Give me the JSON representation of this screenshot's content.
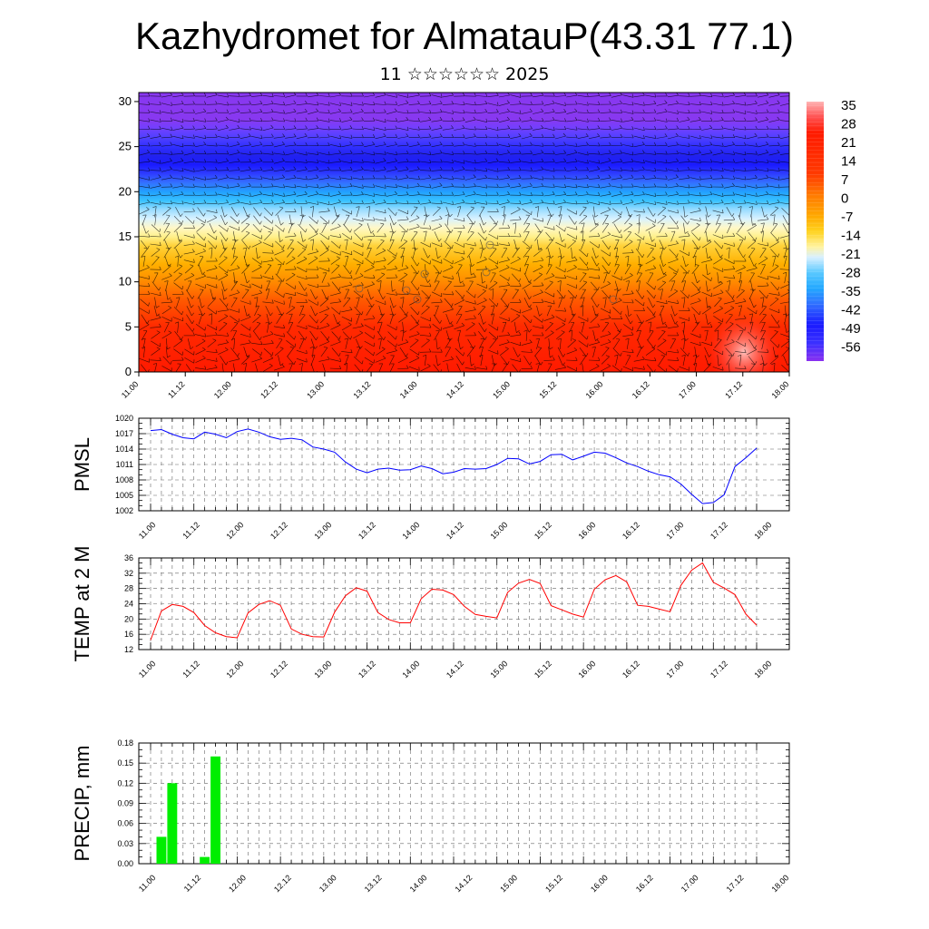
{
  "header": {
    "title": "Kazhydromet for AlmatauP(43.31 77.1)",
    "subtitle": "11 ☆☆☆☆☆☆ 2025"
  },
  "colors": {
    "pmsl_line": "#0000ff",
    "temp_line": "#ff0000",
    "precip_bar": "#00ee00",
    "grid": "#000000"
  },
  "chart_data": [
    {
      "type": "heatmap",
      "name": "upper-air-cross-section",
      "x_tick_labels": [
        "11.00",
        "11.12",
        "12.00",
        "12.12",
        "13.00",
        "13.12",
        "14.00",
        "14.12",
        "15.00",
        "15.12",
        "16.00",
        "16.12",
        "17.00",
        "17.12",
        "18.00"
      ],
      "y_ticks": [
        0,
        5,
        10,
        15,
        20,
        25,
        30
      ],
      "ylim": [
        0,
        31
      ],
      "colorbar_labels": [
        "35",
        "28",
        "21",
        "14",
        "7",
        "0",
        "-7",
        "-14",
        "-21",
        "-28",
        "-35",
        "-42",
        "-49",
        "-56"
      ],
      "profile_levels_y": [
        0,
        5,
        8,
        10,
        12,
        14,
        15,
        16,
        17,
        18,
        19,
        20,
        21,
        22,
        23,
        24,
        25,
        26,
        27,
        28,
        31
      ],
      "profile_colors": [
        "#ff1a00",
        "#ff2a00",
        "#ff5a00",
        "#ff8a00",
        "#ffb000",
        "#ffd23a",
        "#fff08a",
        "#fff8c8",
        "#d8f2ff",
        "#9adcff",
        "#38c2ff",
        "#22a0ff",
        "#3470ff",
        "#2e3cff",
        "#1a1aff",
        "#2222ee",
        "#3030ff",
        "#5040ff",
        "#7040ff",
        "#8838f0",
        "#8838f0"
      ],
      "overlay": "wind-barbs"
    },
    {
      "type": "line",
      "name": "PMSL",
      "ylabel": "PMSL",
      "ylim": [
        1002,
        1020
      ],
      "y_ticks": [
        1002,
        1005,
        1008,
        1011,
        1014,
        1017,
        1020
      ],
      "x_tick_labels": [
        "11.00",
        "11.12",
        "12.00",
        "12.12",
        "13.00",
        "13.12",
        "14.00",
        "14.12",
        "15.00",
        "15.12",
        "16.00",
        "16.12",
        "17.00",
        "17.12",
        "18.00"
      ],
      "values": [
        1017.6,
        1017.8,
        1016.9,
        1016.2,
        1016.0,
        1017.3,
        1016.9,
        1016.2,
        1017.4,
        1017.9,
        1017.3,
        1016.4,
        1015.9,
        1016.1,
        1015.8,
        1014.4,
        1014.0,
        1013.4,
        1011.5,
        1010.1,
        1009.4,
        1010.1,
        1010.3,
        1009.9,
        1010.0,
        1010.7,
        1010.2,
        1009.2,
        1009.5,
        1010.2,
        1010.1,
        1010.2,
        1011.0,
        1012.2,
        1012.1,
        1011.1,
        1011.6,
        1012.9,
        1013.0,
        1011.9,
        1012.6,
        1013.4,
        1013.2,
        1012.3,
        1011.3,
        1010.6,
        1009.7,
        1009.0,
        1008.6,
        1007.2,
        1005.2,
        1003.4,
        1003.6,
        1005.1,
        1010.6,
        1012.3,
        1014.2
      ]
    },
    {
      "type": "line",
      "name": "TEMP at 2 M",
      "ylabel": "TEMP at 2 M",
      "ylim": [
        12,
        36
      ],
      "y_ticks": [
        12,
        16,
        20,
        24,
        28,
        32,
        36
      ],
      "x_tick_labels": [
        "11.00",
        "11.12",
        "12.00",
        "12.12",
        "13.00",
        "13.12",
        "14.00",
        "14.12",
        "15.00",
        "15.12",
        "16.00",
        "16.12",
        "17.00",
        "17.12",
        "18.00"
      ],
      "values": [
        14.5,
        22.1,
        23.8,
        23.3,
        21.7,
        18.3,
        16.4,
        15.4,
        15.1,
        21.6,
        23.8,
        24.8,
        23.6,
        17.4,
        16.0,
        15.4,
        15.3,
        21.8,
        26.1,
        28.2,
        27.3,
        21.7,
        19.9,
        19.0,
        19.0,
        25.3,
        27.8,
        27.6,
        26.4,
        23.3,
        21.2,
        20.7,
        20.3,
        27.0,
        29.4,
        30.4,
        29.3,
        23.5,
        22.4,
        21.3,
        20.5,
        27.8,
        30.3,
        31.4,
        29.7,
        23.6,
        23.3,
        22.6,
        21.9,
        28.8,
        32.8,
        34.7,
        29.6,
        28.1,
        26.4,
        21.3,
        18.4
      ]
    },
    {
      "type": "bar",
      "name": "PRECIP",
      "ylabel": "PRECIP, mm",
      "ylim": [
        0,
        0.18
      ],
      "y_ticks": [
        "0.00",
        "0.03",
        "0.06",
        "0.09",
        "0.12",
        "0.15",
        "0.18"
      ],
      "x_tick_labels": [
        "11.00",
        "11.12",
        "12.00",
        "12.12",
        "13.00",
        "13.12",
        "14.00",
        "14.12",
        "15.00",
        "15.12",
        "16.00",
        "16.12",
        "17.00",
        "17.12",
        "18.00"
      ],
      "values": [
        0,
        0.04,
        0.12,
        0,
        0,
        0.01,
        0.16,
        0,
        0,
        0,
        0,
        0,
        0,
        0,
        0,
        0,
        0,
        0,
        0,
        0,
        0,
        0,
        0,
        0,
        0,
        0,
        0,
        0,
        0,
        0,
        0,
        0,
        0,
        0,
        0,
        0,
        0,
        0,
        0,
        0,
        0,
        0,
        0,
        0,
        0,
        0,
        0,
        0,
        0,
        0,
        0,
        0,
        0,
        0,
        0,
        0,
        0
      ]
    }
  ]
}
